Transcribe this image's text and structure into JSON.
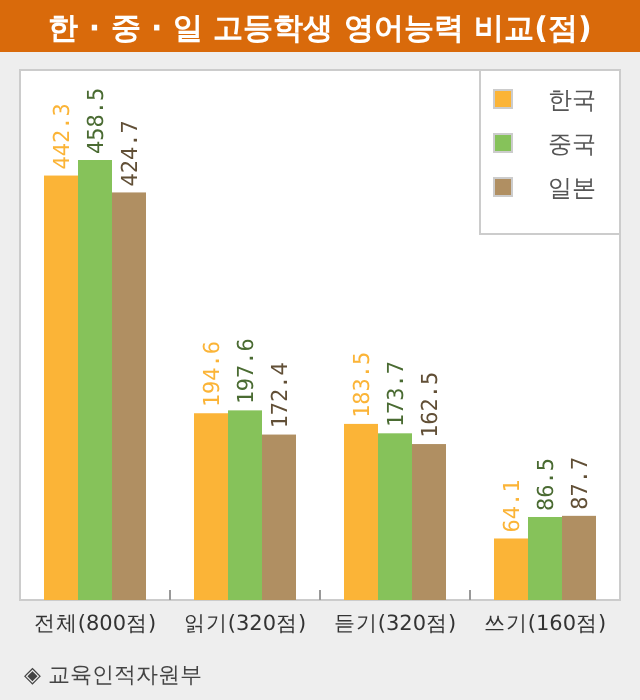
{
  "chart_data": {
    "type": "bar",
    "title": "한 · 중 · 일 고등학생 영어능력 비교(점)",
    "categories": [
      "전체(800점)",
      "읽기(320점)",
      "듣기(320점)",
      "쓰기(160점)"
    ],
    "series": [
      {
        "name": "한국",
        "color": "#fbb437",
        "values": [
          442.3,
          194.6,
          183.5,
          64.1
        ]
      },
      {
        "name": "중국",
        "color": "#86c25a",
        "values": [
          458.5,
          197.6,
          173.7,
          86.5
        ]
      },
      {
        "name": "일본",
        "color": "#b08f62",
        "values": [
          424.7,
          172.4,
          162.5,
          87.7
        ]
      }
    ],
    "data_labels": true,
    "legend": "top right",
    "tick_labels": "x",
    "annotations": [
      "◈ 교육인적자원부"
    ]
  }
}
